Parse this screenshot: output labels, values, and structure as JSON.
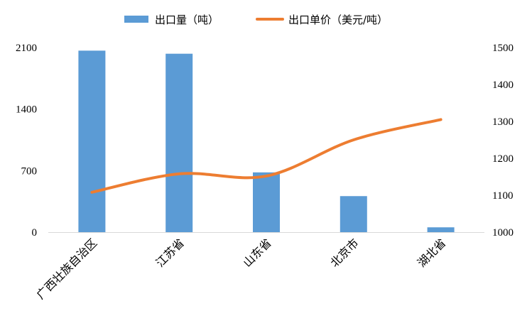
{
  "chart_data": {
    "type": "bar+line",
    "categories": [
      "广西壮族自治区",
      "江苏省",
      "山东省",
      "北京市",
      "湖北省"
    ],
    "series": [
      {
        "name": "出口量（吨）",
        "type": "bar",
        "axis": "left",
        "color": "#5b9bd5",
        "values": [
          2065,
          2030,
          680,
          410,
          55
        ]
      },
      {
        "name": "出口单价（美元/吨）",
        "type": "line",
        "axis": "right",
        "color": "#ed7d31",
        "smooth": true,
        "values": [
          1108,
          1158,
          1152,
          1250,
          1305
        ]
      }
    ],
    "y_left": {
      "ylim": [
        0,
        2100
      ],
      "ticks": [
        0,
        700,
        1400,
        2100
      ]
    },
    "y_right": {
      "ylim": [
        1000,
        1500
      ],
      "ticks": [
        1000,
        1100,
        1200,
        1300,
        1400,
        1500
      ]
    },
    "legend_position": "top",
    "grid": false
  }
}
